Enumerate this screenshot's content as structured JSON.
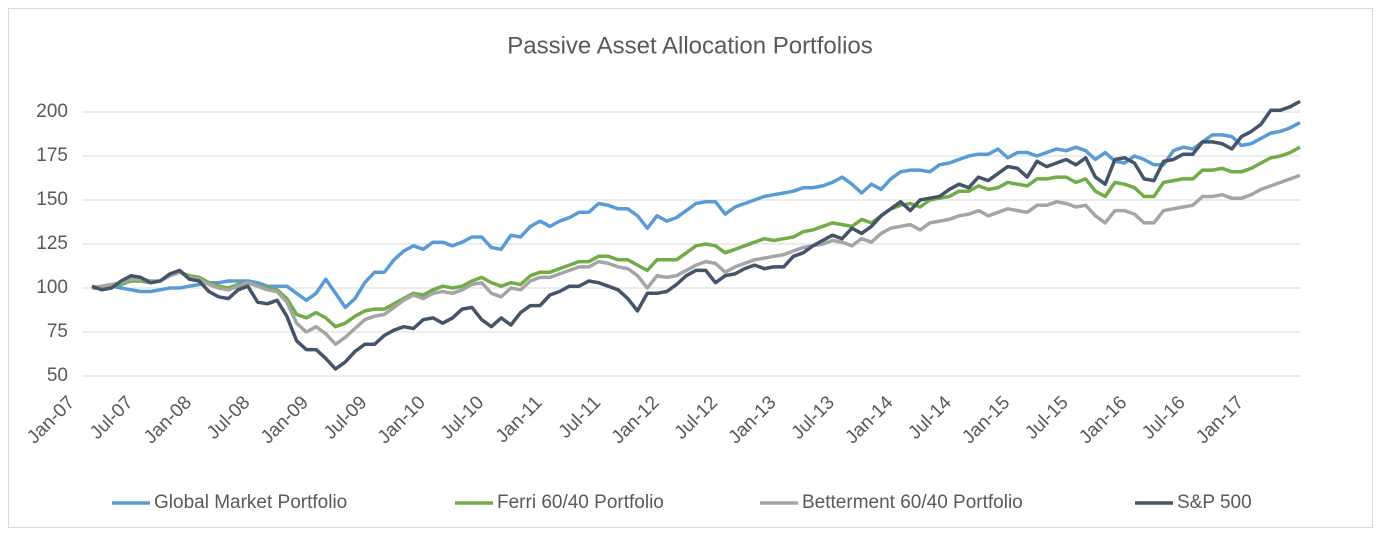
{
  "chart_data": {
    "type": "line",
    "title": "Passive Asset Allocation Portfolios",
    "categories": [
      "Jan-07",
      null,
      null,
      null,
      null,
      null,
      "Jul-07",
      null,
      null,
      null,
      null,
      null,
      "Jan-08",
      null,
      null,
      null,
      null,
      null,
      "Jul-08",
      null,
      null,
      null,
      null,
      null,
      "Jan-09",
      null,
      null,
      null,
      null,
      null,
      "Jul-09",
      null,
      null,
      null,
      null,
      null,
      "Jan-10",
      null,
      null,
      null,
      null,
      null,
      "Jul-10",
      null,
      null,
      null,
      null,
      null,
      "Jan-11",
      null,
      null,
      null,
      null,
      null,
      "Jul-11",
      null,
      null,
      null,
      null,
      null,
      "Jan-12",
      null,
      null,
      null,
      null,
      null,
      "Jul-12",
      null,
      null,
      null,
      null,
      null,
      "Jan-13",
      null,
      null,
      null,
      null,
      null,
      "Jul-13",
      null,
      null,
      null,
      null,
      null,
      "Jan-14",
      null,
      null,
      null,
      null,
      null,
      "Jul-14",
      null,
      null,
      null,
      null,
      null,
      "Jan-15",
      null,
      null,
      null,
      null,
      null,
      "Jul-15",
      null,
      null,
      null,
      null,
      null,
      "Jan-16",
      null,
      null,
      null,
      null,
      null,
      "Jul-16",
      null,
      null,
      null,
      null,
      null,
      "Jan-17",
      null,
      null,
      null,
      null
    ],
    "series": [
      {
        "name": "Global Market Portfolio",
        "color": "#5b9bd5",
        "values": [
          100,
          100,
          101,
          100,
          99,
          98,
          98,
          99,
          100,
          100,
          101,
          102,
          103,
          103,
          104,
          104,
          104,
          103,
          101,
          101,
          101,
          97,
          93,
          97,
          105,
          97,
          89,
          94,
          103,
          109,
          109,
          116,
          121,
          124,
          122,
          126,
          126,
          124,
          126,
          129,
          129,
          123,
          122,
          130,
          129,
          135,
          138,
          135,
          138,
          140,
          143,
          143,
          148,
          147,
          145,
          145,
          141,
          134,
          141,
          138,
          140,
          144,
          148,
          149,
          149,
          142,
          146,
          148,
          150,
          152,
          153,
          154,
          155,
          157,
          157,
          158,
          160,
          163,
          159,
          154,
          159,
          156,
          162,
          166,
          167,
          167,
          166,
          170,
          171,
          173,
          175,
          176,
          176,
          179,
          174,
          177,
          177,
          175,
          177,
          179,
          178,
          180,
          178,
          173,
          177,
          172,
          171,
          175,
          173,
          170,
          170,
          178,
          180,
          179,
          183,
          187,
          187,
          186,
          181,
          182,
          185,
          188,
          189,
          191,
          194
        ]
      },
      {
        "name": "Ferri 60/40 Portfolio",
        "color": "#70ad47",
        "values": [
          100,
          100,
          101,
          102,
          104,
          104,
          103,
          104,
          107,
          109,
          107,
          106,
          103,
          101,
          100,
          102,
          103,
          101,
          100,
          99,
          94,
          85,
          83,
          86,
          83,
          78,
          80,
          84,
          87,
          88,
          88,
          91,
          94,
          97,
          96,
          99,
          101,
          100,
          101,
          104,
          106,
          103,
          101,
          103,
          102,
          107,
          109,
          109,
          111,
          113,
          115,
          115,
          118,
          118,
          116,
          116,
          113,
          110,
          116,
          116,
          116,
          120,
          124,
          125,
          124,
          120,
          122,
          124,
          126,
          128,
          127,
          128,
          129,
          132,
          133,
          135,
          137,
          136,
          135,
          139,
          137,
          141,
          145,
          147,
          148,
          146,
          150,
          151,
          152,
          155,
          155,
          158,
          156,
          157,
          160,
          159,
          158,
          162,
          162,
          163,
          163,
          160,
          162,
          155,
          152,
          160,
          159,
          157,
          152,
          152,
          160,
          161,
          162,
          162,
          167,
          167,
          168,
          166,
          166,
          168,
          171,
          174,
          175,
          177,
          180
        ]
      },
      {
        "name": "Betterment 60/40 Portfolio",
        "color": "#a5a5a5",
        "values": [
          100,
          101,
          102,
          103,
          105,
          105,
          104,
          104,
          107,
          109,
          106,
          105,
          102,
          100,
          99,
          101,
          103,
          101,
          99,
          98,
          92,
          80,
          75,
          78,
          74,
          68,
          72,
          77,
          82,
          84,
          85,
          89,
          93,
          96,
          94,
          97,
          98,
          97,
          99,
          102,
          103,
          97,
          95,
          100,
          99,
          104,
          106,
          106,
          108,
          110,
          112,
          112,
          115,
          114,
          112,
          111,
          107,
          100,
          107,
          106,
          107,
          110,
          113,
          115,
          114,
          109,
          112,
          114,
          116,
          117,
          118,
          119,
          121,
          123,
          124,
          125,
          127,
          126,
          124,
          128,
          126,
          131,
          134,
          135,
          136,
          133,
          137,
          138,
          139,
          141,
          142,
          144,
          141,
          143,
          145,
          144,
          143,
          147,
          147,
          149,
          148,
          146,
          147,
          141,
          137,
          144,
          144,
          142,
          137,
          137,
          144,
          145,
          146,
          147,
          152,
          152,
          153,
          151,
          151,
          153,
          156,
          158,
          160,
          162,
          164
        ]
      },
      {
        "name": "S&P 500",
        "color": "#44546a",
        "values": [
          101,
          99,
          100,
          104,
          107,
          106,
          103,
          104,
          108,
          110,
          105,
          104,
          98,
          95,
          94,
          99,
          101,
          92,
          91,
          93,
          84,
          70,
          65,
          65,
          60,
          54,
          58,
          64,
          68,
          68,
          73,
          76,
          78,
          77,
          82,
          83,
          80,
          83,
          88,
          89,
          82,
          78,
          83,
          79,
          86,
          90,
          90,
          96,
          98,
          101,
          101,
          104,
          103,
          101,
          99,
          94,
          87,
          97,
          97,
          98,
          102,
          107,
          110,
          110,
          103,
          107,
          108,
          111,
          113,
          111,
          112,
          112,
          118,
          120,
          124,
          127,
          130,
          128,
          134,
          131,
          135,
          141,
          145,
          149,
          144,
          150,
          151,
          152,
          156,
          159,
          157,
          163,
          161,
          165,
          169,
          168,
          163,
          172,
          169,
          171,
          173,
          170,
          174,
          163,
          159,
          173,
          174,
          171,
          162,
          161,
          172,
          173,
          176,
          176,
          183,
          183,
          182,
          179,
          186,
          189,
          193,
          201,
          201,
          203,
          206
        ]
      }
    ],
    "ylim": [
      40,
      210
    ],
    "yticks": [
      50,
      75,
      100,
      125,
      150,
      175,
      200
    ],
    "grid": true,
    "legend": "bottom"
  }
}
